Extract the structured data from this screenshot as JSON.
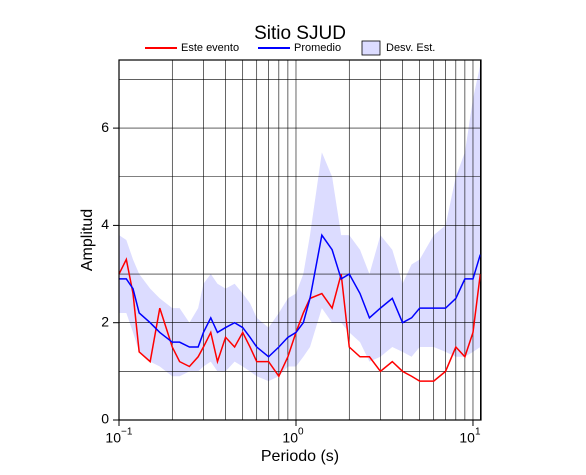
{
  "chart_data": {
    "type": "line",
    "title": "Sitio SJUD",
    "x_label": "Periodo (s)",
    "y_label": "Amplitud",
    "log_x": true,
    "grid": true,
    "xlim": [
      0.1,
      11.1
    ],
    "ylim": [
      0,
      7.4
    ],
    "xticks": [
      {
        "value": 0.1,
        "label": "10",
        "exp": "−1"
      },
      {
        "value": 1,
        "label": "10",
        "exp": "0"
      },
      {
        "value": 10,
        "label": "10",
        "exp": "1"
      }
    ],
    "xgrid": [
      0.1,
      0.2,
      0.3,
      0.4,
      0.5,
      0.6,
      0.7,
      0.8,
      0.9,
      1,
      2,
      3,
      4,
      5,
      6,
      7,
      8,
      9,
      10,
      11
    ],
    "yticks": [
      0,
      2,
      4,
      6
    ],
    "ygrid": [
      1,
      2,
      3,
      4,
      5,
      6,
      7
    ],
    "x": [
      0.1,
      0.11,
      0.12,
      0.13,
      0.15,
      0.17,
      0.2,
      0.22,
      0.25,
      0.28,
      0.3,
      0.33,
      0.36,
      0.4,
      0.45,
      0.5,
      0.55,
      0.6,
      0.7,
      0.8,
      0.9,
      1.0,
      1.1,
      1.2,
      1.4,
      1.6,
      1.8,
      2.0,
      2.3,
      2.6,
      3.0,
      3.5,
      4,
      4.5,
      5,
      6,
      7,
      8,
      9,
      10,
      11
    ],
    "series": [
      {
        "name": "Este evento",
        "color": "#ff0000",
        "values": [
          3.0,
          3.3,
          2.6,
          1.4,
          1.2,
          2.3,
          1.5,
          1.2,
          1.1,
          1.3,
          1.5,
          1.8,
          1.2,
          1.7,
          1.5,
          1.8,
          1.5,
          1.2,
          1.2,
          0.9,
          1.3,
          1.8,
          2.2,
          2.5,
          2.6,
          2.3,
          3.0,
          1.5,
          1.3,
          1.3,
          1.0,
          1.2,
          1.0,
          0.9,
          0.8,
          0.8,
          1.0,
          1.5,
          1.3,
          1.8,
          3.0
        ]
      },
      {
        "name": "Promedio",
        "color": "#0000ff",
        "values": [
          2.9,
          2.9,
          2.7,
          2.2,
          2.0,
          1.8,
          1.6,
          1.6,
          1.5,
          1.5,
          1.8,
          2.1,
          1.8,
          1.9,
          2.0,
          1.9,
          1.7,
          1.5,
          1.3,
          1.5,
          1.7,
          1.8,
          2.0,
          2.5,
          3.8,
          3.5,
          2.9,
          3.0,
          2.6,
          2.1,
          2.3,
          2.5,
          2.0,
          2.1,
          2.3,
          2.3,
          2.3,
          2.5,
          2.9,
          2.9,
          3.4
        ]
      },
      {
        "name": "Desv. Est.",
        "color": "#dcdcff",
        "lower": [
          2.2,
          2.2,
          1.8,
          1.4,
          1.2,
          1.1,
          0.9,
          0.9,
          1.0,
          1.0,
          1.1,
          1.2,
          1.0,
          1.0,
          1.2,
          1.1,
          1.0,
          0.9,
          0.8,
          0.9,
          1.1,
          1.1,
          1.3,
          1.5,
          2.3,
          2.0,
          2.0,
          1.8,
          1.6,
          1.2,
          1.3,
          1.5,
          1.4,
          1.3,
          1.5,
          1.5,
          1.4,
          1.3,
          1.3,
          1.4,
          1.5
        ],
        "upper": [
          3.8,
          3.7,
          3.3,
          3.0,
          2.7,
          2.5,
          2.3,
          2.3,
          2.0,
          2.3,
          2.8,
          3.0,
          2.8,
          2.7,
          2.8,
          2.6,
          2.4,
          2.1,
          1.9,
          2.2,
          2.5,
          2.6,
          3.0,
          3.8,
          5.5,
          5.0,
          3.8,
          3.8,
          3.5,
          3.0,
          3.8,
          3.5,
          2.8,
          3.2,
          3.3,
          3.8,
          4.0,
          5.0,
          5.5,
          6.6,
          7.3
        ]
      }
    ]
  }
}
